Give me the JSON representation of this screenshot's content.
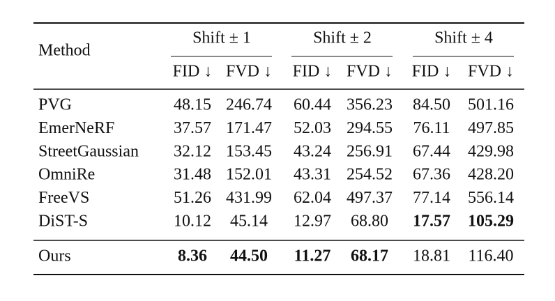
{
  "table": {
    "method_header": "Method",
    "groups": [
      "Shift ± 1",
      "Shift ± 2",
      "Shift ± 4"
    ],
    "metrics": [
      "FID ↓",
      "FVD ↓",
      "FID ↓",
      "FVD ↓",
      "FID ↓",
      "FVD ↓"
    ],
    "rows": [
      [
        "PVG",
        "48.15",
        "246.74",
        "60.44",
        "356.23",
        "84.50",
        "501.16"
      ],
      [
        "EmerNeRF",
        "37.57",
        "171.47",
        "52.03",
        "294.55",
        "76.11",
        "497.85"
      ],
      [
        "StreetGaussian",
        "32.12",
        "153.45",
        "43.24",
        "256.91",
        "67.44",
        "429.98"
      ],
      [
        "OmniRe",
        "31.48",
        "152.01",
        "43.31",
        "254.52",
        "67.36",
        "428.20"
      ],
      [
        "FreeVS",
        "51.26",
        "431.99",
        "62.04",
        "497.37",
        "77.14",
        "556.14"
      ],
      [
        "DiST-S",
        "10.12",
        "45.14",
        "12.97",
        "68.80",
        "17.57",
        "105.29"
      ],
      [
        "Ours",
        "8.36",
        "44.50",
        "11.27",
        "68.17",
        "18.81",
        "116.40"
      ]
    ],
    "bold": [
      [
        5,
        5
      ],
      [
        5,
        6
      ],
      [
        6,
        1
      ],
      [
        6,
        2
      ],
      [
        6,
        3
      ],
      [
        6,
        4
      ]
    ]
  }
}
